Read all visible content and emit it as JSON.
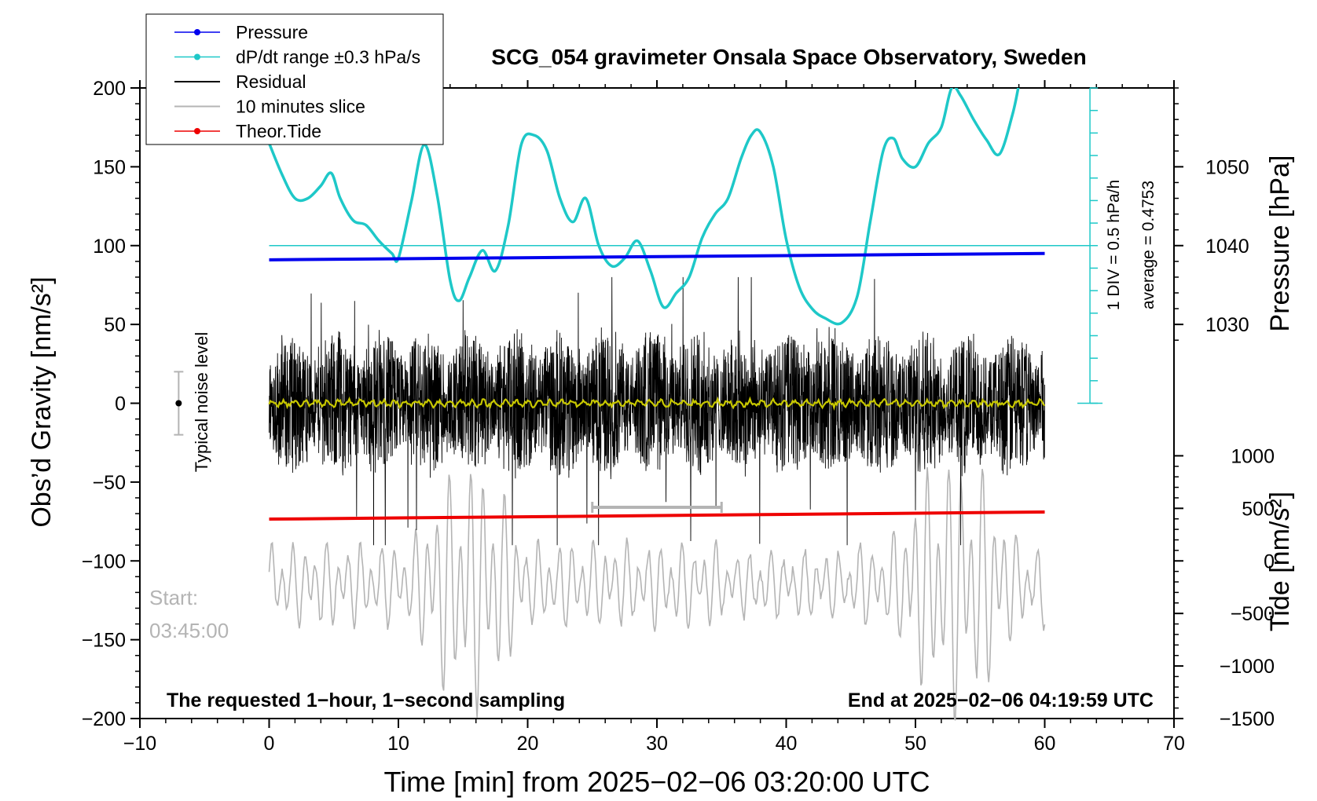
{
  "chart_data": {
    "type": "line",
    "title": "SCG_054 gravimeter Onsala Space Observatory, Sweden",
    "xlabel": "Time [min] from 2025−02−06 03:20:00 UTC",
    "ylabel_left": "Obs’d Gravity [nm/s²]",
    "ylabel_right_pressure": "Pressure [hPa]",
    "ylabel_right_tide": "Tide [nm/s²]",
    "xlim": [
      -10,
      70
    ],
    "ylim": [
      -200,
      200
    ],
    "x_ticks": [
      -10,
      0,
      10,
      20,
      30,
      40,
      50,
      60,
      70
    ],
    "y_ticks": [
      200,
      150,
      100,
      50,
      0,
      -50,
      -100,
      -150,
      -200
    ],
    "x_tick_labels": [
      "−10",
      "0",
      "10",
      "20",
      "30",
      "40",
      "50",
      "60",
      "70"
    ],
    "y_tick_labels": [
      "200",
      "150",
      "100",
      "50",
      "0",
      "−50",
      "−100",
      "−150",
      "−200"
    ],
    "pressure_axis": {
      "ticks": [
        1050,
        1040,
        1030
      ],
      "labels": [
        "1050",
        "1040",
        "1030"
      ],
      "gravity_at_1040": 100,
      "nm_per_hpa": 5
    },
    "tide_axis": {
      "ticks": [
        1000,
        500,
        0,
        -500,
        -1000,
        -1500
      ],
      "labels": [
        "1000",
        "500",
        "0",
        "−500",
        "−1000",
        "−1500"
      ],
      "gravity_at_zero": -100,
      "nm_per_unit": 0.06667
    },
    "legend": [
      {
        "label": "Pressure",
        "color": "#0000ee",
        "marker": true
      },
      {
        "label": "dP/dt range ±0.3 hPa/s",
        "color": "#1ec8c8",
        "marker": true
      },
      {
        "label": "Residual",
        "color": "#000000",
        "marker": false
      },
      {
        "label": "10 minutes slice",
        "color": "#b4b4b4",
        "marker": false
      },
      {
        "label": "Theor.Tide",
        "color": "#ee0000",
        "marker": true
      }
    ],
    "legend_position": "top-left",
    "series": [
      {
        "name": "Pressure",
        "color": "#0000ee",
        "x": [
          0,
          60
        ],
        "y": [
          91,
          95
        ]
      },
      {
        "name": "Theor.Tide",
        "color": "#ee0000",
        "x": [
          0,
          60
        ],
        "y": [
          -73.5,
          -69
        ]
      },
      {
        "name": "dP/dt",
        "color": "#1ec8c8",
        "x": [
          0,
          1.0,
          2.0,
          3.0,
          4.0,
          4.8,
          5.5,
          6.5,
          7.5,
          8.5,
          9.5,
          10.0,
          11.0,
          12.0,
          13.0,
          14.0,
          14.7,
          15.5,
          16.5,
          17.5,
          18.5,
          19.5,
          20.5,
          21.5,
          22.5,
          23.5,
          24.5,
          25.5,
          26.5,
          27.5,
          28.5,
          29.5,
          30.5,
          31.5,
          32.5,
          33.5,
          34.5,
          35.5,
          36.5,
          37.3,
          38.0,
          39.0,
          40.0,
          41.0,
          42.0,
          43.0,
          44.3,
          45.5,
          46.5,
          47.5,
          48.3,
          49.0,
          50.0,
          51.0,
          52.0,
          52.8,
          53.5,
          54.5,
          55.5,
          56.5,
          57.5,
          58.0
        ],
        "y": [
          165,
          145,
          130,
          130,
          138,
          146,
          130,
          116,
          113,
          103,
          95,
          92,
          128,
          164,
          132,
          78,
          65,
          80,
          97,
          84,
          113,
          164,
          170,
          160,
          130,
          115,
          130,
          100,
          87,
          92,
          103,
          84,
          61,
          70,
          80,
          105,
          120,
          130,
          155,
          170,
          172,
          150,
          104,
          74,
          60,
          54,
          51,
          68,
          115,
          160,
          168,
          155,
          150,
          165,
          175,
          200,
          195,
          180,
          167,
          158,
          183,
          202
        ]
      },
      {
        "name": "Residual",
        "color": "#000000",
        "x": [
          0,
          60
        ],
        "amplitude_range": [
          -90,
          80
        ]
      },
      {
        "name": "Residual (filtered)",
        "color": "#c8c800",
        "x": [
          0,
          60
        ],
        "y": [
          0,
          0
        ]
      },
      {
        "name": "10 minutes slice",
        "color": "#b4b4b4",
        "x": [
          0,
          60
        ],
        "y_range": [
          -200,
          -85
        ]
      }
    ],
    "reference_line": {
      "color": "#1ec8c8",
      "y": 100
    },
    "noise_bar": {
      "x": -7,
      "center": 0,
      "halfwidth": 20,
      "label": "Typical noise level"
    },
    "slice_marker": {
      "x": [
        25,
        35
      ],
      "y": -66
    },
    "scale_bar": {
      "label_div": "1 DIV = 0.5 hPa/h",
      "label_avg": "average = 0.4753"
    },
    "start_label": "Start:",
    "start_time": "03:45:00",
    "footer_left": "The requested 1−hour, 1−second sampling",
    "footer_right": "End at 2025−02−06 04:19:59 UTC"
  }
}
